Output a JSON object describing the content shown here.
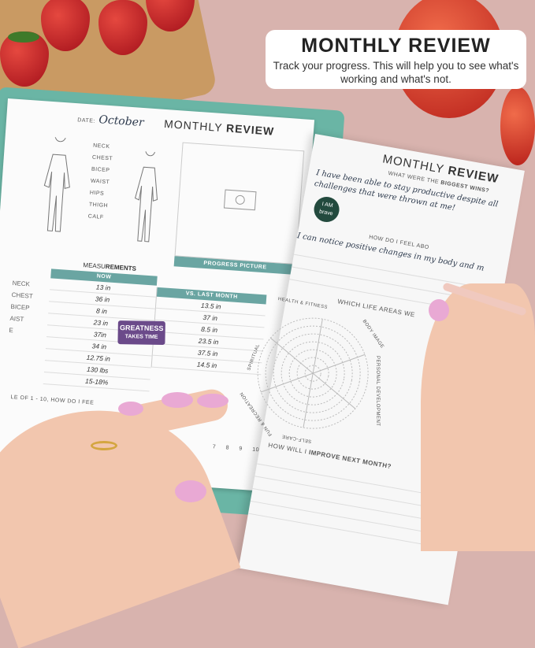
{
  "banner": {
    "title": "MONTHLY REVIEW",
    "subtitle": "Track your progress. This will help you to see what's working and what's not."
  },
  "left_page": {
    "title_light": "MONTHLY ",
    "title_bold": "REVIEW",
    "date_label": "DATE:",
    "date_value": "October",
    "body_parts": [
      "NECK",
      "CHEST",
      "BICEP",
      "WAIST",
      "HIPS",
      "THIGH",
      "CALF"
    ],
    "progress_picture_label": "PROGRESS PICTURE",
    "measurements_title_light": "MEASU",
    "measurements_title_bold": "REMENTS",
    "col_now": "NOW",
    "col_vs": "VS. LAST MONTH",
    "row_labels": [
      "NECK",
      "CHEST",
      "BICEP",
      "AIST",
      "E"
    ],
    "now_values": [
      "13 in",
      "36 in",
      "8 in",
      "23 in",
      "37in",
      "34 in",
      "12.75 in",
      "130 lbs",
      "15-18%"
    ],
    "vs_values": [
      "13.5 in",
      "37 in",
      "8.5 in",
      "23.5 in",
      "37.5 in",
      "14.5 in"
    ],
    "sticker": {
      "line1": "GREATNESS",
      "line2": "TAKES TIME"
    },
    "scale_question": "LE OF 1 - 10, HOW DO I FEE",
    "scale_numbers": [
      "7",
      "8",
      "9",
      "10"
    ]
  },
  "right_page": {
    "title_light": "MONTHLY ",
    "title_bold": "REVIEW",
    "q1_light": "WHAT WERE THE ",
    "q1_bold": "BIGGEST WINS?",
    "a1": "I have been able to stay productive despite all challenges that were thrown at me!",
    "sticker": "I AM brave",
    "q2": "HOW DO I FEEL ABO",
    "a2": "I can notice positive changes in my body and m",
    "q3": "WHICH LIFE AREAS WE",
    "wheel_labels": [
      "HEALTH & FITNESS",
      "BODY IMAGE",
      "PERSONAL DEVELOPMENT",
      "SELF-CARE",
      "FUN & RECREATION",
      "SPIRITUAL"
    ],
    "q4_light": "HOW WILL I ",
    "q4_bold": "IMPROVE NEXT MONTH?"
  },
  "colors": {
    "teal": "#6aa5a2",
    "background": "#d8b3ae",
    "nail": "#e9a9d4",
    "sticker_purple": "#6b4a8a",
    "sticker_green": "#234a3e"
  }
}
